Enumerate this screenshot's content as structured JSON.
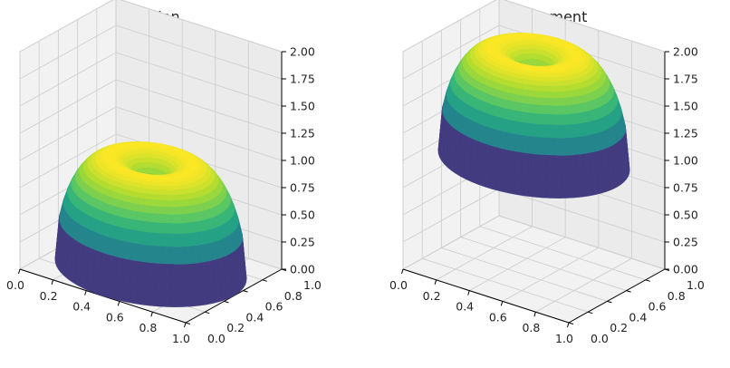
{
  "chart_data": [
    {
      "type": "surface3d",
      "title": "Solution",
      "surface": "ring-dome",
      "colormap": "viridis",
      "x_ticks": [
        "0.0",
        "0.2",
        "0.4",
        "0.6",
        "0.8",
        "1.0"
      ],
      "y_ticks": [
        "0.0",
        "0.2",
        "0.4",
        "0.6",
        "0.8",
        "1.0"
      ],
      "z_ticks": [
        "0.00",
        "0.25",
        "0.50",
        "0.75",
        "1.00",
        "1.25",
        "1.50",
        "1.75",
        "2.00"
      ],
      "xlim": [
        0,
        1
      ],
      "ylim": [
        0,
        1
      ],
      "zlim": [
        0,
        2
      ],
      "z_offset": 0,
      "center": [
        0.5,
        0.5
      ],
      "support_radius": 0.5,
      "ring_radius": 0.22,
      "peak": 1.0,
      "center_min": 0.68,
      "grid": true
    },
    {
      "type": "surface3d",
      "title": "Rehaussement",
      "surface": "ring-dome",
      "colormap": "viridis",
      "x_ticks": [
        "0.0",
        "0.2",
        "0.4",
        "0.6",
        "0.8",
        "1.0"
      ],
      "y_ticks": [
        "0.0",
        "0.2",
        "0.4",
        "0.6",
        "0.8",
        "1.0"
      ],
      "z_ticks": [
        "0.00",
        "0.25",
        "0.50",
        "0.75",
        "1.00",
        "1.25",
        "1.50",
        "1.75",
        "2.00"
      ],
      "xlim": [
        0,
        1
      ],
      "ylim": [
        0,
        1
      ],
      "zlim": [
        0,
        2
      ],
      "z_offset": 1.0,
      "center": [
        0.5,
        0.5
      ],
      "support_radius": 0.5,
      "ring_radius": 0.22,
      "peak": 1.0,
      "center_min": 0.68,
      "grid": true
    }
  ]
}
